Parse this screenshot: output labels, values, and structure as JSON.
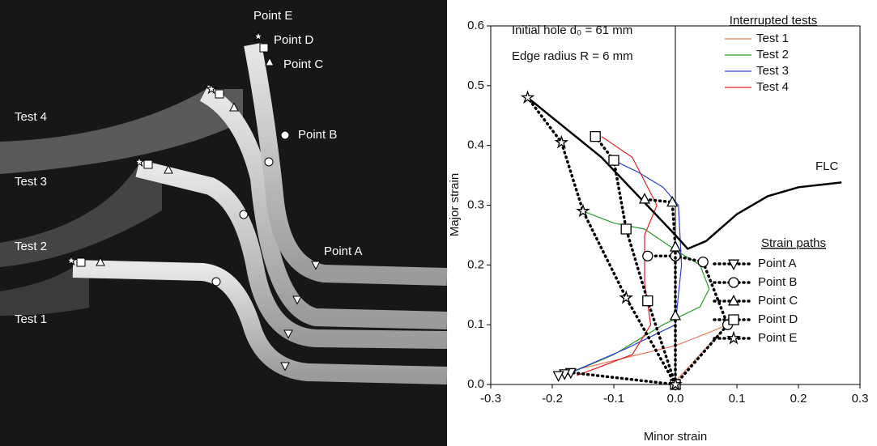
{
  "photo": {
    "labels": [
      "Point E",
      "Point D",
      "Point C",
      "Point B",
      "Point A",
      "Test 4",
      "Test 3",
      "Test 2",
      "Test 1"
    ]
  },
  "chart_data": {
    "type": "line",
    "xlabel": "Minor strain",
    "ylabel": "Major strain",
    "annotations": [
      "Initial hole d₀ = 61 mm",
      "Edge radius R = 6 mm",
      "FLC"
    ],
    "xlim": [
      -0.3,
      0.3
    ],
    "ylim": [
      0,
      0.6
    ],
    "xticks": [
      -0.3,
      -0.2,
      -0.1,
      {
        "value": 0,
        "label": "0.0"
      },
      0.1,
      0.2,
      0.3
    ],
    "yticks": [
      {
        "value": 0,
        "label": "0.0"
      },
      0.1,
      0.2,
      0.3,
      0.4,
      0.5,
      0.6
    ],
    "legends": [
      "Interrupted tests",
      "Strain paths"
    ],
    "series": [
      {
        "name": "Test 1",
        "color": "#ec7a5f",
        "legend": 0,
        "x": [
          -0.18,
          -0.1,
          0,
          0.05,
          0.085,
          0.04,
          0
        ],
        "values": [
          0.02,
          0.04,
          0.065,
          0.085,
          0.1,
          0.05,
          0.005
        ]
      },
      {
        "name": "Test 2",
        "color": "#2a9a2a",
        "legend": 0,
        "x": [
          -0.18,
          -0.1,
          -0.02,
          0.04,
          0.055,
          0.04,
          0,
          -0.05,
          -0.1,
          -0.15
        ],
        "values": [
          0.015,
          0.05,
          0.1,
          0.13,
          0.16,
          0.2,
          0.225,
          0.26,
          0.27,
          0.29
        ]
      },
      {
        "name": "Test 3",
        "color": "#2d3fd6",
        "legend": 0,
        "x": [
          -0.17,
          -0.08,
          0,
          0.01,
          0.005,
          -0.02,
          -0.06,
          -0.1
        ],
        "values": [
          0.02,
          0.06,
          0.1,
          0.2,
          0.3,
          0.33,
          0.355,
          0.375
        ]
      },
      {
        "name": "Test 4",
        "color": "#e02020",
        "legend": 0,
        "x": [
          -0.16,
          -0.07,
          -0.04,
          -0.05,
          -0.05,
          -0.03,
          -0.07,
          -0.12
        ],
        "values": [
          0.015,
          0.05,
          0.1,
          0.17,
          0.25,
          0.3,
          0.38,
          0.415
        ]
      },
      {
        "color": "#000000",
        "width": 2.5,
        "x": [
          -0.24,
          -0.12,
          0,
          0.02,
          0.05,
          0.1,
          0.15,
          0.2,
          0.27
        ],
        "values": [
          0.48,
          0.38,
          0.25,
          0.227,
          0.24,
          0.285,
          0.315,
          0.33,
          0.338
        ]
      },
      {
        "name": "Point A",
        "color": "#000000",
        "legend": 1,
        "dotted": true,
        "marker": "triangle-down",
        "x": [
          0,
          -0.17,
          -0.18,
          -0.19
        ],
        "values": [
          0,
          0.02,
          0.018,
          0.015
        ]
      },
      {
        "name": "Point B",
        "color": "#000000",
        "legend": 1,
        "dotted": true,
        "marker": "circle",
        "x": [
          0,
          0.085,
          0.045,
          0,
          -0.045
        ],
        "values": [
          0,
          0.1,
          0.205,
          0.215,
          0.215
        ]
      },
      {
        "name": "Point C",
        "color": "#000000",
        "legend": 1,
        "dotted": true,
        "marker": "triangle-up",
        "x": [
          0,
          0,
          0,
          -0.005,
          -0.05
        ],
        "values": [
          0,
          0.115,
          0.23,
          0.305,
          0.31
        ]
      },
      {
        "name": "Point D",
        "color": "#000000",
        "legend": 1,
        "dotted": true,
        "marker": "square",
        "x": [
          0,
          -0.045,
          -0.08,
          -0.1,
          -0.13
        ],
        "values": [
          0,
          0.14,
          0.26,
          0.375,
          0.415
        ]
      },
      {
        "name": "Point E",
        "color": "#000000",
        "legend": 1,
        "dotted": true,
        "marker": "star",
        "x": [
          0,
          -0.08,
          -0.15,
          -0.185,
          -0.24
        ],
        "values": [
          0,
          0.145,
          0.29,
          0.405,
          0.48
        ]
      }
    ]
  }
}
